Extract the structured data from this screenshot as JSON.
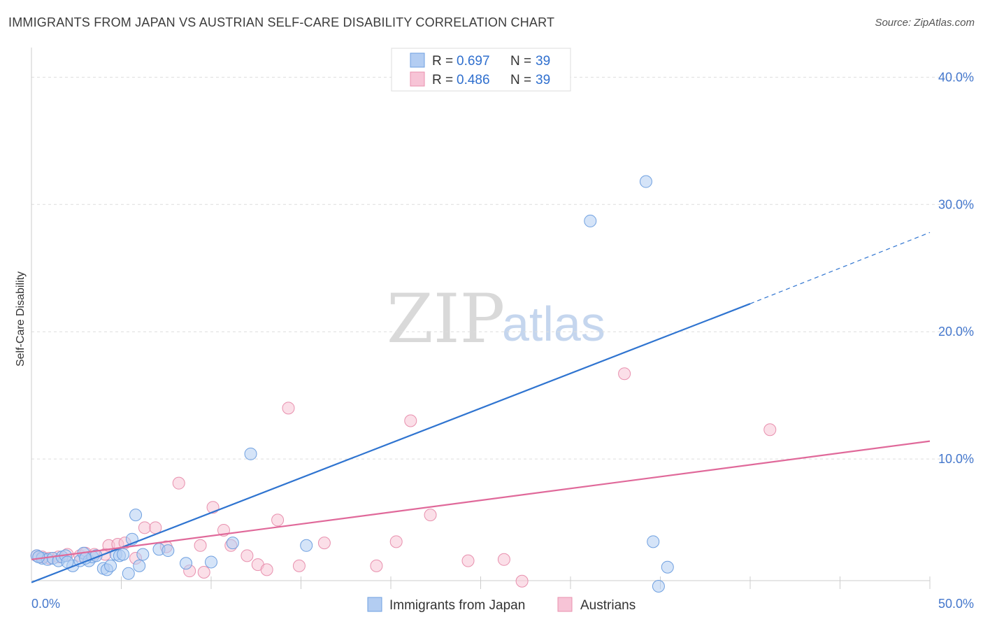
{
  "title": "IMMIGRANTS FROM JAPAN VS AUSTRIAN SELF-CARE DISABILITY CORRELATION CHART",
  "source": "Source: ZipAtlas.com",
  "watermark": {
    "zip": "ZIP",
    "atlas": "atlas"
  },
  "chart_data": {
    "type": "scatter",
    "title": "IMMIGRANTS FROM JAPAN VS AUSTRIAN SELF-CARE DISABILITY CORRELATION CHART",
    "xlabel": "",
    "ylabel": "Self-Care Disability",
    "xlim": [
      0,
      50
    ],
    "ylim": [
      0,
      42
    ],
    "x_tick_labels": [
      "0.0%",
      "50.0%"
    ],
    "y_ticks": [
      10,
      20,
      30,
      40
    ],
    "y_tick_labels": [
      "10.0%",
      "20.0%",
      "30.0%",
      "40.0%"
    ],
    "legend_position": "top-center",
    "series": [
      {
        "name": "Immigrants from Japan",
        "color": "#6fa0e0",
        "fill": "#b3cdf2",
        "line_color": "#2f74d0",
        "R": "0.697",
        "N": "39",
        "trend": {
          "x0": 0,
          "y0": 0.3,
          "x1": 40,
          "y1": 22.2,
          "dash_to_x": 50,
          "dash_to_y": 27.8
        },
        "points": [
          [
            0.3,
            2.4
          ],
          [
            0.6,
            2.2
          ],
          [
            0.9,
            2.1
          ],
          [
            1.2,
            2.2
          ],
          [
            1.5,
            2.0
          ],
          [
            1.7,
            2.3
          ],
          [
            1.9,
            2.4
          ],
          [
            2.3,
            1.6
          ],
          [
            2.7,
            2.0
          ],
          [
            2.9,
            2.6
          ],
          [
            3.2,
            2.0
          ],
          [
            3.4,
            2.3
          ],
          [
            3.6,
            2.4
          ],
          [
            4.0,
            1.4
          ],
          [
            4.2,
            1.3
          ],
          [
            4.4,
            1.6
          ],
          [
            4.7,
            2.5
          ],
          [
            4.9,
            2.4
          ],
          [
            5.1,
            2.5
          ],
          [
            5.4,
            1.0
          ],
          [
            5.6,
            3.7
          ],
          [
            5.8,
            5.6
          ],
          [
            6.0,
            1.6
          ],
          [
            6.2,
            2.5
          ],
          [
            7.1,
            2.9
          ],
          [
            7.6,
            2.8
          ],
          [
            8.6,
            1.8
          ],
          [
            10.0,
            1.9
          ],
          [
            11.2,
            3.4
          ],
          [
            12.2,
            10.4
          ],
          [
            15.3,
            3.2
          ],
          [
            31.1,
            28.7
          ],
          [
            34.2,
            31.8
          ],
          [
            34.6,
            3.5
          ],
          [
            34.9,
            0.0
          ],
          [
            0.4,
            2.3
          ],
          [
            2.0,
            1.9
          ],
          [
            3.0,
            2.2
          ],
          [
            35.4,
            1.5
          ]
        ]
      },
      {
        "name": "Austrians",
        "color": "#e890ae",
        "fill": "#f7c4d6",
        "line_color": "#e0699a",
        "R": "0.486",
        "N": "39",
        "trend": {
          "x0": 0,
          "y0": 2.1,
          "x1": 50,
          "y1": 11.4
        },
        "points": [
          [
            0.3,
            2.4
          ],
          [
            0.6,
            2.3
          ],
          [
            1.0,
            2.2
          ],
          [
            1.5,
            2.3
          ],
          [
            2.0,
            2.5
          ],
          [
            2.7,
            2.4
          ],
          [
            3.0,
            2.6
          ],
          [
            3.5,
            2.5
          ],
          [
            4.1,
            2.5
          ],
          [
            4.3,
            3.2
          ],
          [
            4.8,
            3.3
          ],
          [
            5.2,
            3.4
          ],
          [
            5.8,
            2.2
          ],
          [
            6.3,
            4.6
          ],
          [
            6.9,
            4.6
          ],
          [
            7.5,
            3.1
          ],
          [
            8.2,
            8.1
          ],
          [
            8.8,
            1.2
          ],
          [
            9.4,
            3.2
          ],
          [
            9.6,
            1.1
          ],
          [
            10.1,
            6.2
          ],
          [
            10.7,
            4.4
          ],
          [
            11.1,
            3.2
          ],
          [
            12.0,
            2.4
          ],
          [
            12.6,
            1.7
          ],
          [
            13.1,
            1.3
          ],
          [
            13.7,
            5.2
          ],
          [
            14.3,
            14.0
          ],
          [
            14.9,
            1.6
          ],
          [
            16.3,
            3.4
          ],
          [
            19.2,
            1.6
          ],
          [
            20.3,
            3.5
          ],
          [
            21.1,
            13.0
          ],
          [
            22.2,
            5.6
          ],
          [
            24.3,
            2.0
          ],
          [
            26.3,
            2.1
          ],
          [
            27.3,
            0.4
          ],
          [
            33.0,
            16.7
          ],
          [
            41.1,
            12.3
          ]
        ]
      }
    ]
  },
  "legend": {
    "r_label": "R =",
    "n_label": "N =",
    "rows": [
      {
        "r": "0.697",
        "n": "39"
      },
      {
        "r": "0.486",
        "n": "39"
      }
    ]
  },
  "bottom_legend": [
    "Immigrants from Japan",
    "Austrians"
  ]
}
